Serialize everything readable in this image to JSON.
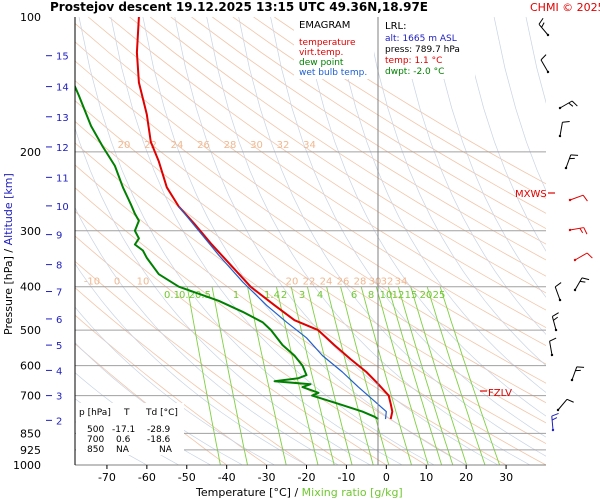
{
  "header": {
    "title": "Prostejov   descent   19.12.2025 13:15 UTC  49.36N,18.97E",
    "copyright": "CHMI © 2025"
  },
  "axes": {
    "ylabel_pressure": "Pressure [hPa]",
    "ylabel_sep": "/",
    "ylabel_altitude": "Altitude [km]",
    "xlabel_temperature": "Temperature [°C]",
    "xlabel_sep": "/",
    "xlabel_mixing": "Mixing ratio [g/kg]"
  },
  "legend": {
    "title": "EMAGRAM",
    "items": [
      {
        "label": "temperature",
        "color": "#e00000"
      },
      {
        "label": "virt.temp.",
        "color": "#e00000"
      },
      {
        "label": "dew point",
        "color": "#008000"
      },
      {
        "label": "wet bulb temp.",
        "color": "#2060d0"
      }
    ]
  },
  "lrl": {
    "title": "LRL:",
    "alt": "alt: 1665 m ASL",
    "press": "press: 789.7 hPa",
    "temp": "temp: 1.1 °C",
    "dwpt": "dwpt: -2.0 °C"
  },
  "levels_table": {
    "headers": [
      "p [hPa]",
      "T",
      "Td [°C]"
    ],
    "rows": [
      [
        "500",
        "-17.1",
        "-28.9"
      ],
      [
        "700",
        "0.6",
        "-18.6"
      ],
      [
        "850",
        "NA",
        "NA"
      ]
    ]
  },
  "markers": {
    "mxws": "MXWS",
    "fzlv": "FZLV"
  },
  "colors": {
    "temperature": "#e00000",
    "dewpoint": "#008000",
    "wetbulb": "#2060d0",
    "mixing": "#7fd040",
    "height_labels": "#2020c0"
  },
  "chart_data": {
    "type": "line",
    "title": "Prostejov   descent   19.12.2025 13:15 UTC  49.36N,18.97E",
    "xlabel": "Temperature [°C]",
    "ylabel": "Pressure [hPa]",
    "x_ticks": [
      -70,
      -60,
      -50,
      -40,
      -30,
      -20,
      -10,
      0,
      10,
      20,
      30
    ],
    "p_ticks": [
      100,
      200,
      300,
      400,
      500,
      600,
      700,
      850,
      925,
      1000
    ],
    "xlim": [
      -78,
      40
    ],
    "plim": [
      100,
      1000
    ],
    "height_ticks_km": [
      15,
      14,
      13,
      12,
      11,
      10,
      9,
      8,
      7,
      6,
      5,
      4,
      3,
      2
    ],
    "height_tick_pressures": [
      122,
      143,
      167,
      195,
      228,
      264,
      306,
      357,
      410,
      472,
      540,
      615,
      700,
      795
    ],
    "isotherm_labels": [
      -70,
      -60,
      -50,
      -40,
      -30,
      -20,
      -10,
      0,
      10,
      20,
      22,
      24,
      26,
      28,
      30,
      32,
      34
    ],
    "mixing_ratio_labels": [
      "0.1",
      "0.2",
      "0.5",
      "1",
      "1.4",
      "2",
      "3",
      "4",
      "6",
      "8",
      "10",
      "12",
      "15",
      "20",
      "25"
    ],
    "mixing_ratio_values": [
      0.1,
      0.2,
      0.5,
      1,
      1.4,
      2,
      3,
      4,
      6,
      8,
      10,
      12,
      15,
      20,
      25
    ],
    "series": [
      {
        "name": "temperature",
        "points": [
          [
            -62,
            100
          ],
          [
            -62.5,
            120
          ],
          [
            -62,
            140
          ],
          [
            -60,
            165
          ],
          [
            -59,
            190
          ],
          [
            -57,
            210
          ],
          [
            -55,
            240
          ],
          [
            -52,
            265
          ],
          [
            -48,
            290
          ],
          [
            -44,
            320
          ],
          [
            -40,
            350
          ],
          [
            -34,
            400
          ],
          [
            -28,
            440
          ],
          [
            -23,
            475
          ],
          [
            -17.1,
            500
          ],
          [
            -13,
            540
          ],
          [
            -9,
            580
          ],
          [
            -5,
            620
          ],
          [
            -2,
            660
          ],
          [
            0.6,
            700
          ],
          [
            1.1,
            730
          ],
          [
            1.5,
            760
          ],
          [
            1.1,
            790
          ]
        ]
      },
      {
        "name": "dew point",
        "points": [
          [
            -80,
            130
          ],
          [
            -77,
            150
          ],
          [
            -74,
            175
          ],
          [
            -71,
            195
          ],
          [
            -68,
            215
          ],
          [
            -66,
            240
          ],
          [
            -64,
            262
          ],
          [
            -63,
            275
          ],
          [
            -62,
            285
          ],
          [
            -63,
            300
          ],
          [
            -62,
            312
          ],
          [
            -63,
            322
          ],
          [
            -61,
            332
          ],
          [
            -60,
            345
          ],
          [
            -57,
            375
          ],
          [
            -52,
            400
          ],
          [
            -42,
            430
          ],
          [
            -36,
            455
          ],
          [
            -31,
            480
          ],
          [
            -28.9,
            500
          ],
          [
            -26,
            540
          ],
          [
            -23,
            570
          ],
          [
            -21,
            600
          ],
          [
            -20,
            630
          ],
          [
            -22,
            640
          ],
          [
            -28,
            650
          ],
          [
            -19,
            660
          ],
          [
            -21,
            670
          ],
          [
            -17,
            690
          ],
          [
            -18.6,
            700
          ],
          [
            -12,
            730
          ],
          [
            -6,
            760
          ],
          [
            -3,
            780
          ],
          [
            -2,
            790
          ]
        ]
      },
      {
        "name": "wet bulb temp.",
        "points": [
          [
            -52,
            265
          ],
          [
            -47,
            300
          ],
          [
            -42,
            340
          ],
          [
            -36,
            390
          ],
          [
            -30,
            440
          ],
          [
            -25,
            480
          ],
          [
            -20,
            520
          ],
          [
            -16,
            570
          ],
          [
            -11,
            620
          ],
          [
            -7,
            670
          ],
          [
            -3,
            720
          ],
          [
            0,
            760
          ],
          [
            -0.2,
            790
          ]
        ]
      }
    ]
  }
}
